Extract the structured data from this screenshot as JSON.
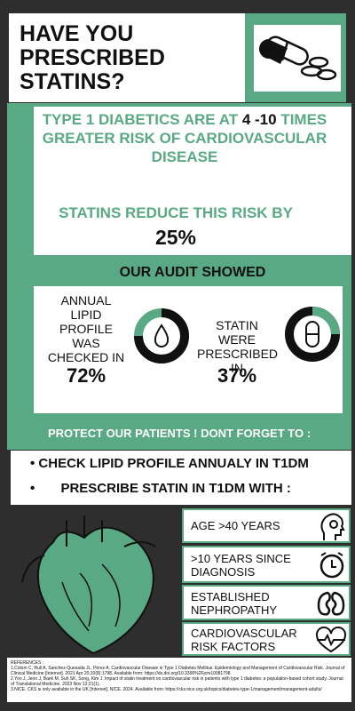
{
  "header": {
    "title": "HAVE YOU PRESCRIBED STATINS?"
  },
  "risk": {
    "text_before": "TYPE 1 DIABETICS ARE AT",
    "range": "4 -10",
    "text_after": "TIMES GREATER RISK OF CARDIOVASCULAR DISEASE"
  },
  "reduction": {
    "text": "STATINS REDUCE THIS RISK BY",
    "value": "25%"
  },
  "audit": {
    "title": "OUR AUDIT SHOWED",
    "items": [
      {
        "label": "ANNUAL LIPID PROFILE WAS CHECKED IN",
        "value": "72%"
      },
      {
        "label": "STATIN WERE PRESCRIBED IN",
        "value": "37%"
      }
    ]
  },
  "reminder": {
    "title": "PROTECT OUR PATIENTS ! DONT FORGET  TO :",
    "bullets": [
      "CHECK LIPID PROFILE ANNUALY IN T1DM",
      "PRESCRIBE STATIN IN T1DM WITH :"
    ]
  },
  "criteria": [
    "AGE >40 YEARS",
    ">10 YEARS SINCE DIAGNOSIS",
    "ESTABLISHED NEPHROPATHY",
    "CARDIOVASCULAR RISK FACTORS"
  ],
  "references": {
    "title": "REFERENCES :",
    "items": [
      "1.Colom C, Rull A, Sanchez-Quesada JL, Pérez A. Cardiovascular Disease in Type 1 Diabetes Mellitus: Epidemiology and Management of Cardiovascular Risk. Journal of Clinical Medicine [Internet]. 2021 Apr 20;10(8):1798. Available from: https://dx.doi.org/10.3390%2Fjcm10081798",
      "2.Yoo J, Jeon J, Baek M, Suh SK, Song, Kim J. Impact of statin treatment on cardiovascular risk in patients with type 1 diabetes: a population-based cohort study. Journal of Translational Medicine. 2023 Nov 12;21(1).",
      "3.NICE. CKS is only available in the UK [Internet]. NICE. 2024. Available from: https://cks.nice.org.uk/topics/diabetes-type-1/management/management-adults/"
    ]
  }
}
